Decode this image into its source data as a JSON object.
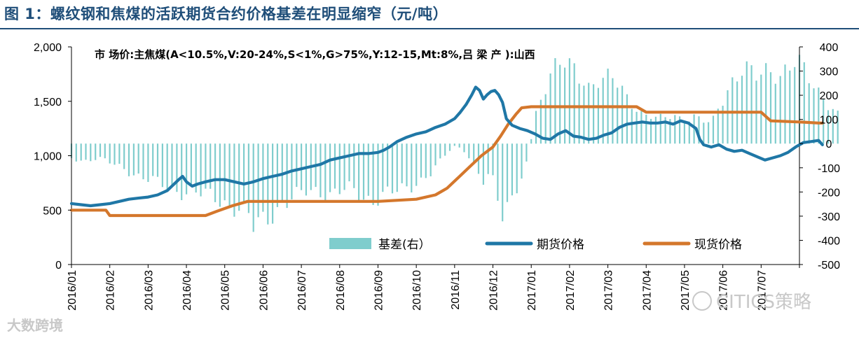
{
  "figure_title": "图 1：螺纹钢和焦煤的活跃期货合约价格基差在明显缩窄（元/吨）",
  "annotation": "市 场价:主焦煤(A<10.5%,V:20-24%,S<1%,G>75%,Y:12-15,Mt:8%,吕 梁 产 ):山西",
  "watermarks": {
    "left": "大数跨境",
    "right": "CITICS策略"
  },
  "colors": {
    "basis": "#7fcdcd",
    "futures": "#1f77a6",
    "spot": "#d4772c"
  },
  "chart_data": {
    "type": "bar+line",
    "title": "图 1：螺纹钢和焦煤的活跃期货合约价格基差在明显缩窄（元/吨）",
    "x_ticks": [
      "2016/01",
      "2016/02",
      "2016/03",
      "2016/04",
      "2016/05",
      "2016/06",
      "2016/07",
      "2016/08",
      "2016/09",
      "2016/10",
      "2016/11",
      "2016/12",
      "2017/01",
      "2017/02",
      "2017/03",
      "2017/04",
      "2017/05",
      "2017/06",
      "2017/07"
    ],
    "y_left": {
      "ticks": [
        "0",
        "500",
        "1,000",
        "1,500",
        "2,000"
      ],
      "range": [
        0,
        2000
      ]
    },
    "y_right": {
      "ticks": [
        "-500",
        "-400",
        "-300",
        "-200",
        "-100",
        "0",
        "100",
        "200",
        "300",
        "400"
      ],
      "range": [
        -500,
        400
      ]
    },
    "legend": {
      "placement": "bottom-right",
      "items": [
        "基差(右）",
        "期货价格",
        "现货价格"
      ]
    },
    "series": [
      {
        "name": "基差(右）",
        "type": "bar",
        "axis": "right",
        "points": [
          [
            0.0,
            -60
          ],
          [
            0.35,
            -70
          ],
          [
            0.7,
            -60
          ],
          [
            1.0,
            -80
          ],
          [
            1.35,
            -100
          ],
          [
            1.7,
            -130
          ],
          [
            2.0,
            -150
          ],
          [
            2.35,
            -170
          ],
          [
            2.7,
            -190
          ],
          [
            3.0,
            -200
          ],
          [
            3.35,
            -210
          ],
          [
            3.7,
            -220
          ],
          [
            4.0,
            -240
          ],
          [
            4.35,
            -270
          ],
          [
            4.6,
            -300
          ],
          [
            4.75,
            -350
          ],
          [
            4.95,
            -320
          ],
          [
            5.2,
            -290
          ],
          [
            5.5,
            -250
          ],
          [
            5.8,
            -230
          ],
          [
            6.1,
            -200
          ],
          [
            6.4,
            -190
          ],
          [
            6.7,
            -210
          ],
          [
            7.0,
            -200
          ],
          [
            7.3,
            -190
          ],
          [
            7.6,
            -220
          ],
          [
            7.9,
            -230
          ],
          [
            8.2,
            -210
          ],
          [
            8.5,
            -200
          ],
          [
            8.8,
            -180
          ],
          [
            9.1,
            -150
          ],
          [
            9.4,
            -120
          ],
          [
            9.6,
            -80
          ],
          [
            9.8,
            -40
          ],
          [
            10.0,
            -10
          ],
          [
            10.2,
            -20
          ],
          [
            10.4,
            -60
          ],
          [
            10.6,
            -120
          ],
          [
            10.75,
            -160
          ],
          [
            10.95,
            -130
          ],
          [
            11.1,
            -220
          ],
          [
            11.25,
            -290
          ],
          [
            11.4,
            -240
          ],
          [
            11.55,
            -200
          ],
          [
            11.7,
            -150
          ],
          [
            11.85,
            -100
          ],
          [
            11.95,
            -40
          ],
          [
            12.05,
            80
          ],
          [
            12.2,
            180
          ],
          [
            12.4,
            250
          ],
          [
            12.6,
            300
          ],
          [
            12.8,
            330
          ],
          [
            12.95,
            310
          ],
          [
            13.1,
            320
          ],
          [
            13.3,
            290
          ],
          [
            13.5,
            240
          ],
          [
            13.7,
            260
          ],
          [
            13.9,
            250
          ],
          [
            14.1,
            270
          ],
          [
            14.3,
            240
          ],
          [
            14.5,
            200
          ],
          [
            14.7,
            160
          ],
          [
            14.9,
            120
          ],
          [
            15.1,
            110
          ],
          [
            15.3,
            100
          ],
          [
            15.5,
            110
          ],
          [
            15.7,
            120
          ],
          [
            15.9,
            110
          ],
          [
            16.1,
            100
          ],
          [
            16.3,
            110
          ],
          [
            16.5,
            90
          ],
          [
            16.7,
            80
          ],
          [
            16.9,
            160
          ],
          [
            17.1,
            220
          ],
          [
            17.3,
            280
          ],
          [
            17.5,
            300
          ],
          [
            17.7,
            290
          ],
          [
            17.9,
            270
          ],
          [
            18.1,
            300
          ],
          [
            18.3,
            320
          ],
          [
            18.5,
            290
          ],
          [
            18.7,
            310
          ],
          [
            18.9,
            330
          ],
          [
            19.1,
            300
          ],
          [
            19.3,
            260
          ],
          [
            19.5,
            220
          ],
          [
            19.7,
            180
          ],
          [
            19.9,
            140
          ],
          [
            20.05,
            110
          ]
        ]
      },
      {
        "name": "期货价格",
        "type": "line",
        "axis": "left",
        "points": [
          [
            0.0,
            560
          ],
          [
            0.5,
            550
          ],
          [
            1.0,
            540
          ],
          [
            1.5,
            550
          ],
          [
            2.0,
            560
          ],
          [
            2.5,
            580
          ],
          [
            3.0,
            600
          ],
          [
            3.5,
            610
          ],
          [
            4.0,
            620
          ],
          [
            4.5,
            640
          ],
          [
            5.0,
            680
          ],
          [
            5.3,
            730
          ],
          [
            5.6,
            780
          ],
          [
            5.8,
            810
          ],
          [
            6.0,
            760
          ],
          [
            6.3,
            720
          ],
          [
            6.6,
            740
          ],
          [
            7.0,
            760
          ],
          [
            7.5,
            780
          ],
          [
            8.0,
            780
          ],
          [
            8.5,
            760
          ],
          [
            9.0,
            740
          ],
          [
            9.5,
            760
          ],
          [
            10.0,
            790
          ],
          [
            10.5,
            810
          ],
          [
            11.0,
            830
          ],
          [
            11.5,
            860
          ],
          [
            12.0,
            880
          ],
          [
            12.5,
            900
          ],
          [
            13.0,
            920
          ],
          [
            13.5,
            960
          ],
          [
            14.0,
            980
          ],
          [
            14.5,
            1000
          ],
          [
            15.0,
            1020
          ],
          [
            15.5,
            1020
          ],
          [
            16.0,
            1030
          ],
          [
            16.3,
            1050
          ],
          [
            16.6,
            1080
          ],
          [
            17.0,
            1130
          ],
          [
            17.5,
            1170
          ],
          [
            18.0,
            1200
          ],
          [
            18.5,
            1220
          ],
          [
            19.0,
            1260
          ],
          [
            19.5,
            1290
          ],
          [
            20.0,
            1340
          ],
          [
            20.3,
            1400
          ],
          [
            20.6,
            1470
          ],
          [
            20.9,
            1560
          ],
          [
            21.1,
            1630
          ],
          [
            21.3,
            1600
          ],
          [
            21.5,
            1520
          ],
          [
            21.7,
            1560
          ],
          [
            21.9,
            1590
          ],
          [
            22.1,
            1600
          ],
          [
            22.3,
            1560
          ],
          [
            22.5,
            1490
          ],
          [
            22.7,
            1340
          ],
          [
            23.0,
            1280
          ],
          [
            23.4,
            1250
          ],
          [
            23.8,
            1230
          ],
          [
            24.2,
            1200
          ],
          [
            24.6,
            1160
          ],
          [
            25.0,
            1150
          ],
          [
            25.4,
            1200
          ],
          [
            25.8,
            1230
          ],
          [
            26.2,
            1180
          ],
          [
            26.6,
            1170
          ],
          [
            27.0,
            1150
          ],
          [
            27.4,
            1160
          ],
          [
            27.8,
            1190
          ],
          [
            28.2,
            1210
          ],
          [
            28.6,
            1260
          ],
          [
            29.0,
            1290
          ],
          [
            29.4,
            1300
          ],
          [
            29.8,
            1310
          ],
          [
            30.2,
            1300
          ],
          [
            30.6,
            1300
          ],
          [
            31.0,
            1310
          ],
          [
            31.4,
            1290
          ],
          [
            31.8,
            1320
          ],
          [
            32.2,
            1300
          ],
          [
            32.6,
            1250
          ],
          [
            32.8,
            1150
          ],
          [
            33.0,
            1100
          ],
          [
            33.4,
            1080
          ],
          [
            33.8,
            1100
          ],
          [
            34.2,
            1060
          ],
          [
            34.6,
            1040
          ],
          [
            35.0,
            1050
          ],
          [
            35.4,
            1020
          ],
          [
            35.8,
            990
          ],
          [
            36.2,
            960
          ],
          [
            36.6,
            980
          ],
          [
            37.0,
            1000
          ],
          [
            37.4,
            1030
          ],
          [
            37.8,
            1080
          ],
          [
            38.2,
            1120
          ],
          [
            38.6,
            1130
          ],
          [
            39.0,
            1140
          ],
          [
            39.2,
            1100
          ]
        ]
      },
      {
        "name": "现货价格",
        "type": "line",
        "axis": "left",
        "points": [
          [
            0.0,
            500
          ],
          [
            1.8,
            500
          ],
          [
            2.0,
            450
          ],
          [
            3.0,
            450
          ],
          [
            6.0,
            450
          ],
          [
            7.0,
            450
          ],
          [
            7.6,
            490
          ],
          [
            8.4,
            540
          ],
          [
            9.2,
            580
          ],
          [
            10.0,
            580
          ],
          [
            12.0,
            580
          ],
          [
            14.0,
            580
          ],
          [
            16.0,
            580
          ],
          [
            18.0,
            600
          ],
          [
            19.0,
            640
          ],
          [
            19.6,
            700
          ],
          [
            20.2,
            800
          ],
          [
            20.8,
            900
          ],
          [
            21.4,
            1000
          ],
          [
            22.0,
            1080
          ],
          [
            22.4,
            1180
          ],
          [
            22.8,
            1290
          ],
          [
            23.2,
            1380
          ],
          [
            23.5,
            1440
          ],
          [
            24.0,
            1450
          ],
          [
            26.0,
            1450
          ],
          [
            28.0,
            1450
          ],
          [
            29.5,
            1450
          ],
          [
            30.0,
            1400
          ],
          [
            32.0,
            1400
          ],
          [
            34.0,
            1400
          ],
          [
            36.0,
            1400
          ],
          [
            36.5,
            1320
          ],
          [
            38.0,
            1310
          ],
          [
            39.0,
            1300
          ],
          [
            39.2,
            1300
          ]
        ]
      }
    ]
  }
}
